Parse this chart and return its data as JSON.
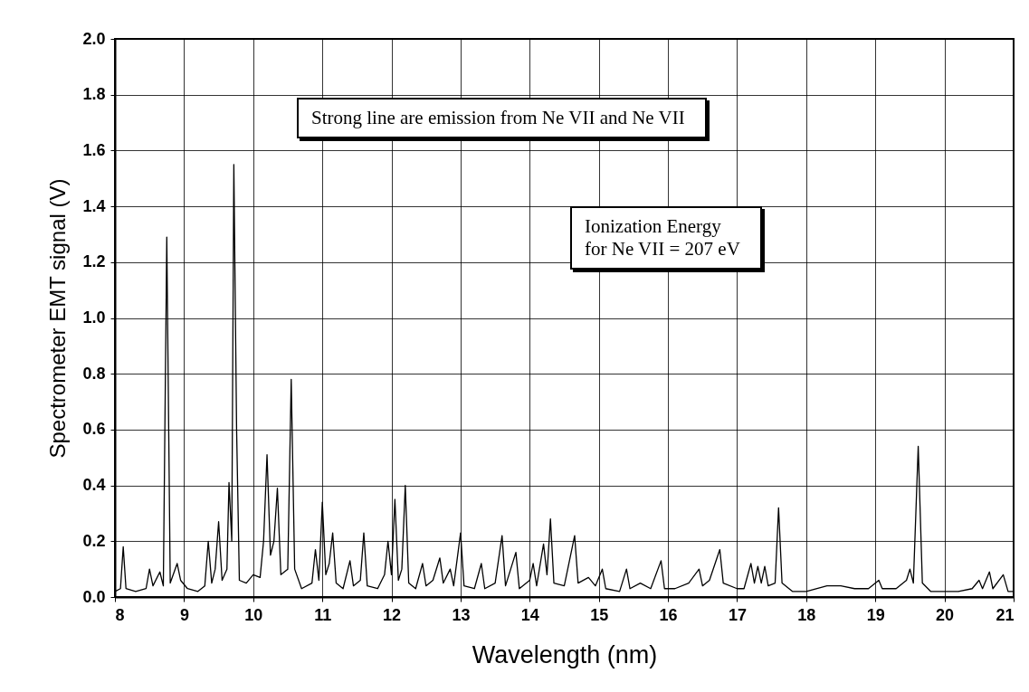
{
  "chart_data": {
    "type": "line",
    "xlabel": "Wavelength (nm)",
    "ylabel": "Spectrometer EMT signal (V)",
    "xlim": [
      8,
      21
    ],
    "xticks": [
      8,
      9,
      10,
      11,
      12,
      13,
      14,
      15,
      16,
      17,
      18,
      19,
      20,
      21
    ],
    "ylim": [
      0,
      2
    ],
    "yticks": [
      {
        "value": 0,
        "label": "0.0"
      },
      0.2,
      0.4,
      0.6,
      0.8,
      {
        "value": 1,
        "label": "1.0"
      },
      1.2,
      1.4,
      1.6,
      1.8,
      {
        "value": 2,
        "label": "2.0"
      }
    ],
    "grid": true,
    "annotations": [
      "Strong line are emission from Ne VII and Ne VII",
      "Ionization Energy\nfor Ne VII = 207 eV"
    ],
    "series": [
      {
        "color": "#000000",
        "x": [
          8.0,
          8.08,
          8.12,
          8.16,
          8.3,
          8.45,
          8.5,
          8.55,
          8.65,
          8.7,
          8.75,
          8.8,
          8.9,
          8.95,
          9.05,
          9.2,
          9.3,
          9.35,
          9.4,
          9.45,
          9.5,
          9.55,
          9.62,
          9.65,
          9.69,
          9.72,
          9.76,
          9.8,
          9.9,
          10.0,
          10.1,
          10.15,
          10.2,
          10.25,
          10.3,
          10.35,
          10.4,
          10.5,
          10.55,
          10.6,
          10.7,
          10.85,
          10.9,
          10.95,
          11.0,
          11.05,
          11.1,
          11.15,
          11.2,
          11.3,
          11.4,
          11.45,
          11.55,
          11.6,
          11.65,
          11.8,
          11.9,
          11.95,
          12.0,
          12.05,
          12.1,
          12.15,
          12.2,
          12.25,
          12.35,
          12.45,
          12.5,
          12.6,
          12.7,
          12.75,
          12.85,
          12.9,
          13.0,
          13.05,
          13.2,
          13.3,
          13.35,
          13.5,
          13.6,
          13.65,
          13.8,
          13.85,
          14.0,
          14.05,
          14.1,
          14.2,
          14.25,
          14.3,
          14.35,
          14.5,
          14.65,
          14.7,
          14.85,
          14.95,
          15.05,
          15.1,
          15.3,
          15.4,
          15.45,
          15.6,
          15.75,
          15.9,
          15.95,
          16.1,
          16.3,
          16.45,
          16.5,
          16.6,
          16.75,
          16.8,
          17.0,
          17.1,
          17.2,
          17.25,
          17.3,
          17.35,
          17.4,
          17.45,
          17.55,
          17.6,
          17.65,
          17.8,
          18.0,
          18.3,
          18.5,
          18.7,
          18.9,
          19.05,
          19.1,
          19.3,
          19.45,
          19.5,
          19.55,
          19.62,
          19.68,
          19.8,
          20.0,
          20.2,
          20.4,
          20.5,
          20.55,
          20.65,
          20.7,
          20.85,
          20.92,
          21.0
        ],
        "values": [
          0.02,
          0.03,
          0.18,
          0.03,
          0.02,
          0.03,
          0.1,
          0.04,
          0.09,
          0.04,
          1.29,
          0.05,
          0.12,
          0.06,
          0.03,
          0.02,
          0.04,
          0.2,
          0.05,
          0.1,
          0.27,
          0.06,
          0.1,
          0.41,
          0.2,
          1.55,
          0.6,
          0.06,
          0.05,
          0.08,
          0.07,
          0.2,
          0.51,
          0.15,
          0.2,
          0.39,
          0.08,
          0.1,
          0.78,
          0.1,
          0.03,
          0.05,
          0.17,
          0.06,
          0.34,
          0.08,
          0.12,
          0.23,
          0.05,
          0.03,
          0.13,
          0.04,
          0.06,
          0.23,
          0.04,
          0.03,
          0.08,
          0.2,
          0.08,
          0.35,
          0.06,
          0.1,
          0.4,
          0.05,
          0.03,
          0.12,
          0.04,
          0.06,
          0.14,
          0.05,
          0.1,
          0.04,
          0.23,
          0.04,
          0.03,
          0.12,
          0.03,
          0.05,
          0.22,
          0.04,
          0.16,
          0.03,
          0.06,
          0.12,
          0.04,
          0.19,
          0.08,
          0.28,
          0.05,
          0.04,
          0.22,
          0.05,
          0.07,
          0.04,
          0.1,
          0.03,
          0.02,
          0.1,
          0.03,
          0.05,
          0.03,
          0.13,
          0.03,
          0.03,
          0.05,
          0.1,
          0.04,
          0.06,
          0.17,
          0.05,
          0.03,
          0.03,
          0.12,
          0.05,
          0.11,
          0.05,
          0.11,
          0.04,
          0.05,
          0.32,
          0.05,
          0.02,
          0.02,
          0.04,
          0.04,
          0.03,
          0.03,
          0.06,
          0.03,
          0.03,
          0.06,
          0.1,
          0.05,
          0.54,
          0.05,
          0.02,
          0.02,
          0.02,
          0.03,
          0.06,
          0.03,
          0.09,
          0.03,
          0.08,
          0.02,
          0.02
        ]
      }
    ]
  }
}
